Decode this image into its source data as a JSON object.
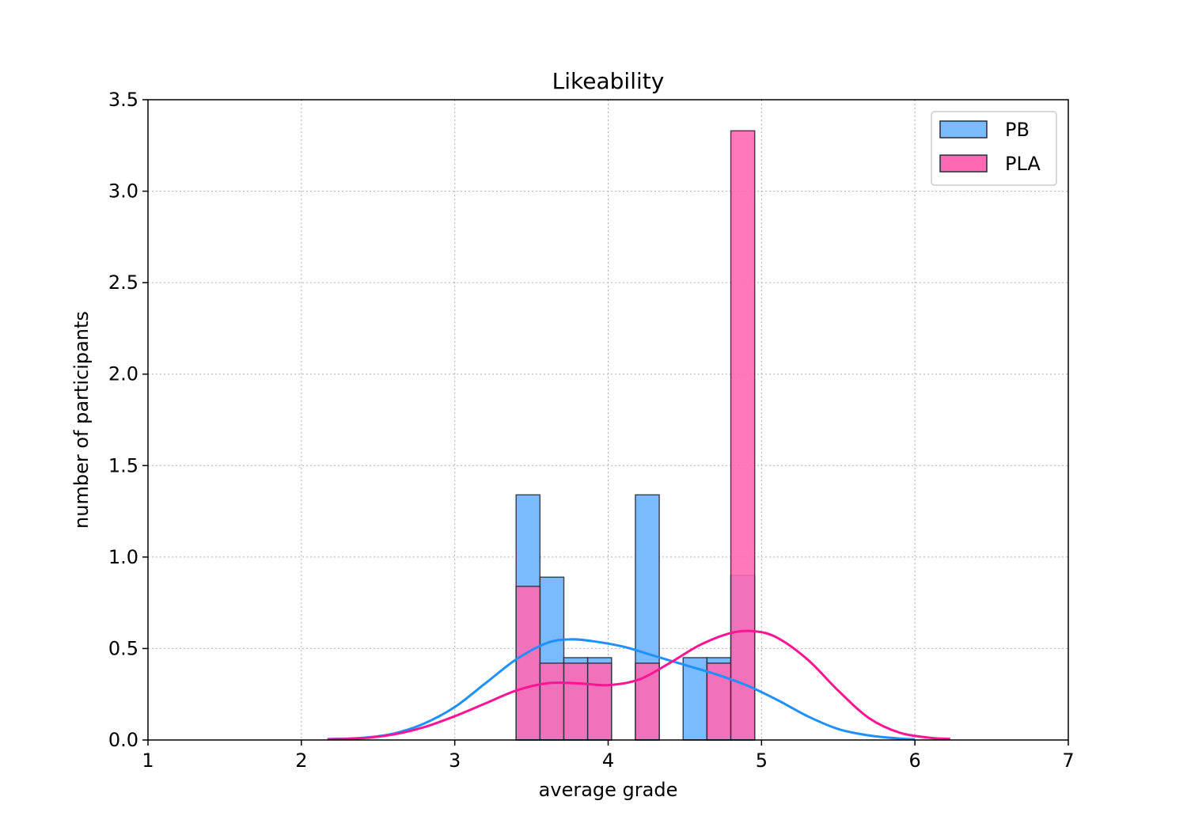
{
  "chart_data": {
    "type": "bar",
    "title": "Likeability",
    "xlabel": "average grade",
    "ylabel": "number of participants",
    "xlim": [
      1,
      7
    ],
    "ylim": [
      0,
      3.5
    ],
    "xticks": [
      1,
      2,
      3,
      4,
      5,
      6,
      7
    ],
    "xtick_labels": [
      "1",
      "2",
      "3",
      "4",
      "5",
      "6",
      "7"
    ],
    "yticks": [
      0,
      0.5,
      1,
      1.5,
      2,
      2.5,
      3,
      3.5
    ],
    "ytick_labels": [
      "0.0",
      "0.5",
      "1.0",
      "1.5",
      "2.0",
      "2.5",
      "3.0",
      "3.5"
    ],
    "grid": true,
    "legend_position": "top-right",
    "bin_edges": [
      3.4,
      3.5556,
      3.7111,
      3.8667,
      4.0222,
      4.1778,
      4.3333,
      4.4889,
      4.6444,
      4.8,
      4.9556
    ],
    "series": [
      {
        "name": "PB",
        "color": "#1e90ff",
        "fill": "#7abaff",
        "bars": [
          1.34,
          0.89,
          0.45,
          0.45,
          0,
          1.34,
          0,
          0.45,
          0.45,
          0.9
        ],
        "kde": {
          "x": [
            2.17,
            2.4,
            2.6,
            2.8,
            3.0,
            3.2,
            3.4,
            3.6,
            3.75,
            3.9,
            4.1,
            4.3,
            4.5,
            4.7,
            4.9,
            5.1,
            5.3,
            5.5,
            5.7,
            5.9,
            6.0
          ],
          "y": [
            0.005,
            0.012,
            0.035,
            0.09,
            0.18,
            0.31,
            0.44,
            0.53,
            0.55,
            0.54,
            0.51,
            0.46,
            0.41,
            0.36,
            0.3,
            0.22,
            0.13,
            0.06,
            0.025,
            0.008,
            0.004
          ]
        }
      },
      {
        "name": "PLA",
        "color": "#ff1493",
        "fill": "#ff69b4",
        "bars": [
          0.84,
          0.42,
          0.42,
          0.42,
          0,
          0.42,
          0,
          0,
          0.42,
          3.33
        ],
        "kde": {
          "x": [
            2.17,
            2.4,
            2.6,
            2.8,
            3.0,
            3.2,
            3.4,
            3.6,
            3.8,
            4.0,
            4.2,
            4.4,
            4.6,
            4.8,
            4.95,
            5.1,
            5.3,
            5.5,
            5.7,
            5.9,
            6.1,
            6.23
          ],
          "y": [
            0.004,
            0.01,
            0.03,
            0.07,
            0.13,
            0.2,
            0.27,
            0.31,
            0.31,
            0.3,
            0.33,
            0.42,
            0.52,
            0.585,
            0.595,
            0.56,
            0.44,
            0.27,
            0.12,
            0.04,
            0.012,
            0.006
          ]
        }
      }
    ]
  }
}
